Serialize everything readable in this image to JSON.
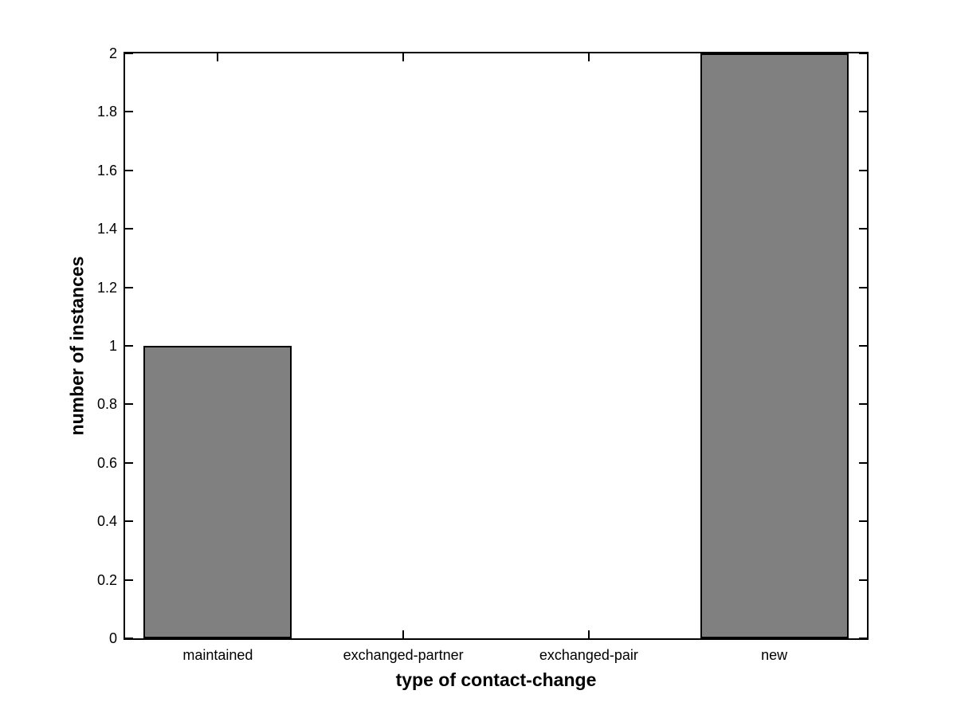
{
  "figure": {
    "background_color": "#ffffff",
    "axis_color": "#000000"
  },
  "chart_data": {
    "type": "bar",
    "title": "",
    "xlabel": "type of contact-change",
    "ylabel": "number of instances",
    "categories": [
      "maintained",
      "exchanged-partner",
      "exchanged-pair",
      "new"
    ],
    "values": [
      1,
      0,
      0,
      2
    ],
    "ylim": [
      0,
      2
    ],
    "yticks": [
      0,
      0.2,
      0.4,
      0.6,
      0.8,
      1,
      1.2,
      1.4,
      1.6,
      1.8,
      2
    ],
    "ytick_labels": [
      "0",
      "0.2",
      "0.4",
      "0.6",
      "0.8",
      "1",
      "1.2",
      "1.4",
      "1.6",
      "1.8",
      "2"
    ],
    "bar_color": "#808080",
    "bar_edge_color": "#000000",
    "bar_width_fraction": 0.8,
    "grid": false,
    "legend": null,
    "box": true,
    "tick_direction": "in"
  }
}
